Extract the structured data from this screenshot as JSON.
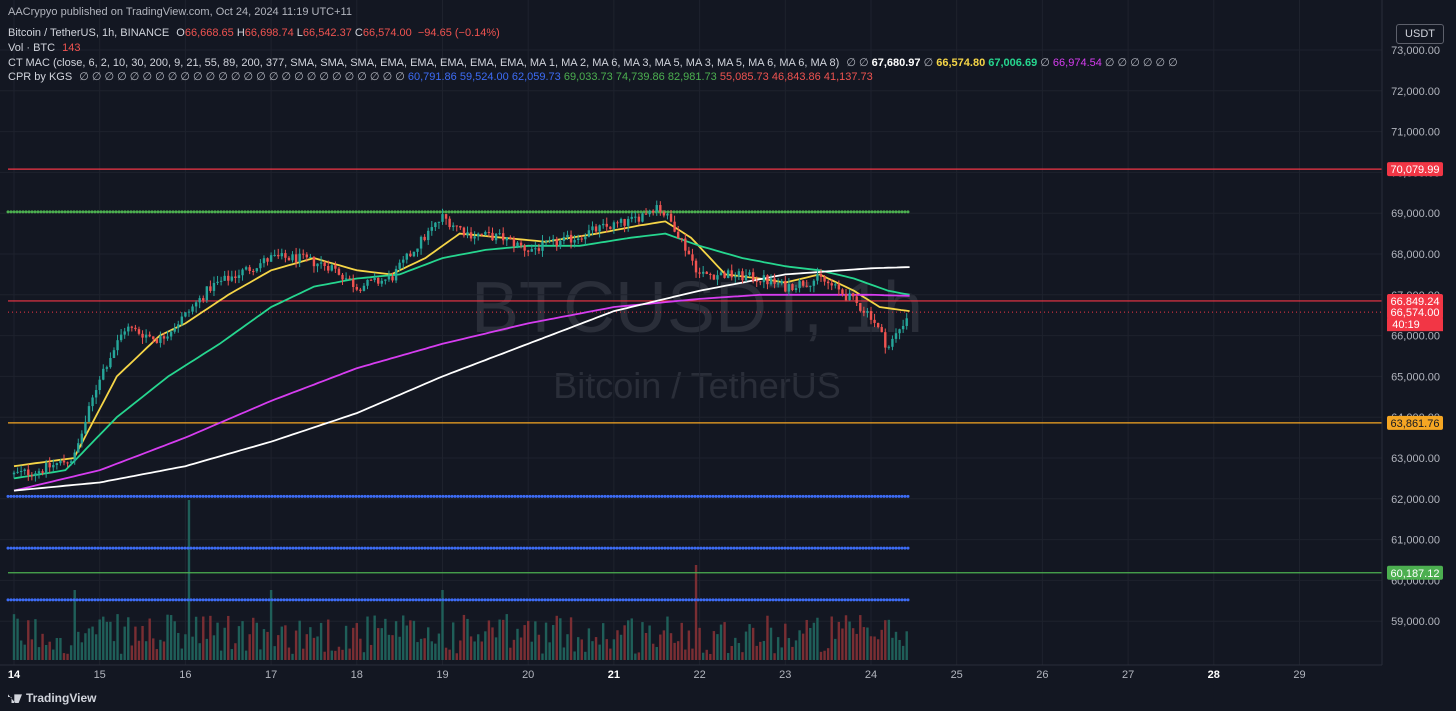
{
  "publisher_line": "AACrypyo published on TradingView.com, Oct 24, 2024 11:19 UTC+11",
  "symbol": {
    "name": "Bitcoin / TetherUS, 1h, BINANCE",
    "o_label": "O",
    "o": "66,668.65",
    "h_label": "H",
    "h": "66,698.74",
    "l_label": "L",
    "l": "66,542.37",
    "c_label": "C",
    "c": "66,574.00",
    "change": "−94.65 (−0.14%)"
  },
  "vol": {
    "label": "Vol · BTC",
    "value": "143"
  },
  "ctmac": {
    "label": "CT MAC (close, 6, 2, 10, 30, 200, 9, 21, 55, 89, 200, 377, SMA, SMA, SMA, EMA, EMA, EMA, EMA, EMA, MA 1, MA 2, MA 6, MA 3, MA 5, MA 3, MA 5, MA 6, MA 6, MA 8)",
    "null_prefix": "∅ ∅",
    "v1": "67,680.97",
    "v2": "66,574.80",
    "v3": "67,006.69",
    "v4": "66,974.54",
    "null_suffix": "∅ ∅ ∅ ∅ ∅ ∅"
  },
  "cpr": {
    "label": "CPR by KGS",
    "nulls": "∅ ∅ ∅ ∅ ∅ ∅ ∅ ∅ ∅ ∅ ∅ ∅ ∅ ∅ ∅ ∅ ∅ ∅ ∅ ∅ ∅ ∅ ∅ ∅ ∅ ∅",
    "values": [
      "60,791.86",
      "59,524.00",
      "62,059.73",
      "69,033.73",
      "74,739.86",
      "82,981.73",
      "55,085.73",
      "46,843.86",
      "41,137.73"
    ]
  },
  "watermark": {
    "ticker": "BTCUSDT, 1h",
    "name": "Bitcoin / TetherUS"
  },
  "unit_button": "USDT",
  "countdown": "40:19",
  "logo_text": "TradingView",
  "colors": {
    "bg": "#131722",
    "up": "#26a69a",
    "down": "#ef5350",
    "ma_yellow": "#f5d547",
    "ma_green": "#26d68f",
    "ma_magenta": "#d63df0",
    "ma_white": "#ffffff",
    "blue": "#3d6cf5",
    "green_dots": "#4caf50",
    "orange": "#f5a623",
    "red_line": "#f23645",
    "green_line": "#4caf50"
  },
  "chart_data": {
    "type": "candlestick",
    "title": "Bitcoin / TetherUS, 1h, BINANCE",
    "xlabel": "",
    "ylabel": "",
    "ylim": [
      58500,
      73500
    ],
    "x_ticks": [
      "14",
      "15",
      "16",
      "17",
      "18",
      "19",
      "20",
      "21",
      "22",
      "23",
      "24",
      "25",
      "26",
      "27",
      "28",
      "29"
    ],
    "y_ticks": [
      59000,
      60000,
      61000,
      62000,
      63000,
      64000,
      65000,
      66000,
      67000,
      68000,
      69000,
      70000,
      71000,
      72000,
      73000
    ],
    "y_tick_labels": [
      "59,000.00",
      "60,000.00",
      "61,000.00",
      "62,000.00",
      "63,000.00",
      "64,000.00",
      "65,000.00",
      "66,000.00",
      "67,000.00",
      "68,000.00",
      "69,000.00",
      "70,000.00",
      "71,000.00",
      "72,000.00",
      "73,000.00"
    ],
    "close_path": {
      "days": [
        14.0,
        14.3,
        14.7,
        15.0,
        15.3,
        15.7,
        16.0,
        16.3,
        16.6,
        17.0,
        17.3,
        17.7,
        18.0,
        18.4,
        18.7,
        19.0,
        19.3,
        19.7,
        20.0,
        20.4,
        20.8,
        21.2,
        21.5,
        21.7,
        22.0,
        22.3,
        22.7,
        23.0,
        23.4,
        23.7,
        24.0,
        24.2,
        24.45
      ],
      "prices": [
        62600,
        62700,
        63000,
        65000,
        66200,
        65900,
        66500,
        67200,
        67500,
        67900,
        67900,
        67700,
        67200,
        67400,
        68200,
        68900,
        68500,
        68400,
        68100,
        68300,
        68600,
        68800,
        69200,
        68700,
        67500,
        67500,
        67400,
        67200,
        67400,
        67000,
        66500,
        65700,
        66574
      ]
    },
    "moving_averages": [
      {
        "color": "#f5d547",
        "last": "66,574.80",
        "days": [
          14.0,
          14.7,
          15.2,
          15.7,
          16.0,
          16.5,
          17.0,
          17.5,
          18.0,
          18.4,
          18.8,
          19.2,
          19.7,
          20.2,
          20.8,
          21.3,
          21.6,
          21.9,
          22.3,
          22.7,
          23.0,
          23.4,
          23.8,
          24.1,
          24.45
        ],
        "prices": [
          62800,
          63000,
          65000,
          66000,
          66300,
          67000,
          67600,
          67900,
          67600,
          67500,
          67900,
          68500,
          68400,
          68300,
          68500,
          68700,
          68800,
          68400,
          67500,
          67400,
          67300,
          67500,
          67100,
          66700,
          66600
        ]
      },
      {
        "color": "#26d68f",
        "last": "67,006.69",
        "days": [
          14.0,
          14.6,
          15.2,
          15.8,
          16.4,
          17.0,
          17.5,
          18.0,
          18.5,
          19.0,
          19.5,
          20.0,
          20.6,
          21.2,
          21.6,
          22.0,
          22.5,
          23.0,
          23.4,
          23.8,
          24.2,
          24.45
        ],
        "prices": [
          62500,
          62700,
          64000,
          65000,
          65800,
          66700,
          67200,
          67400,
          67500,
          67900,
          68100,
          68200,
          68200,
          68400,
          68500,
          68200,
          67900,
          67700,
          67600,
          67400,
          67100,
          67000
        ]
      },
      {
        "color": "#d63df0",
        "last": "66,974.54",
        "days": [
          14.0,
          15.0,
          16.0,
          17.0,
          18.0,
          19.0,
          20.0,
          21.0,
          22.0,
          22.7,
          23.4,
          24.0,
          24.45
        ],
        "prices": [
          62200,
          62700,
          63500,
          64400,
          65200,
          65800,
          66300,
          66700,
          66900,
          67000,
          67000,
          67000,
          66974
        ]
      },
      {
        "color": "#ffffff",
        "last": "67,680.97",
        "days": [
          14.0,
          15.0,
          16.0,
          17.0,
          18.0,
          19.0,
          20.0,
          21.0,
          22.0,
          23.0,
          24.0,
          24.45
        ],
        "prices": [
          62200,
          62400,
          62800,
          63400,
          64100,
          65000,
          65800,
          66600,
          67100,
          67500,
          67650,
          67680
        ]
      }
    ],
    "horizontal_lines": [
      {
        "price": 70079.99,
        "label": "70,079.99",
        "color": "#f23645",
        "style": "solid",
        "full_width": true
      },
      {
        "price": 69033.73,
        "color": "#4caf50",
        "style": "dots",
        "full_width": false
      },
      {
        "price": 66849.24,
        "label": "66,849.24",
        "color": "#f23645",
        "style": "solid",
        "full_width": true
      },
      {
        "price": 66574.0,
        "label": "66,574.00",
        "color": "#f23645",
        "style": "dotted",
        "full_width": true
      },
      {
        "price": 63861.76,
        "label": "63,861.76",
        "color": "#f5a623",
        "style": "solid",
        "full_width": true
      },
      {
        "price": 62059.73,
        "color": "#3d6cf5",
        "style": "dots",
        "full_width": false
      },
      {
        "price": 60791.86,
        "color": "#3d6cf5",
        "style": "dots",
        "full_width": false
      },
      {
        "price": 60187.12,
        "label": "60,187.12",
        "color": "#4caf50",
        "style": "solid",
        "full_width": true
      },
      {
        "price": 59524.0,
        "color": "#3d6cf5",
        "style": "dots",
        "full_width": false
      }
    ]
  }
}
